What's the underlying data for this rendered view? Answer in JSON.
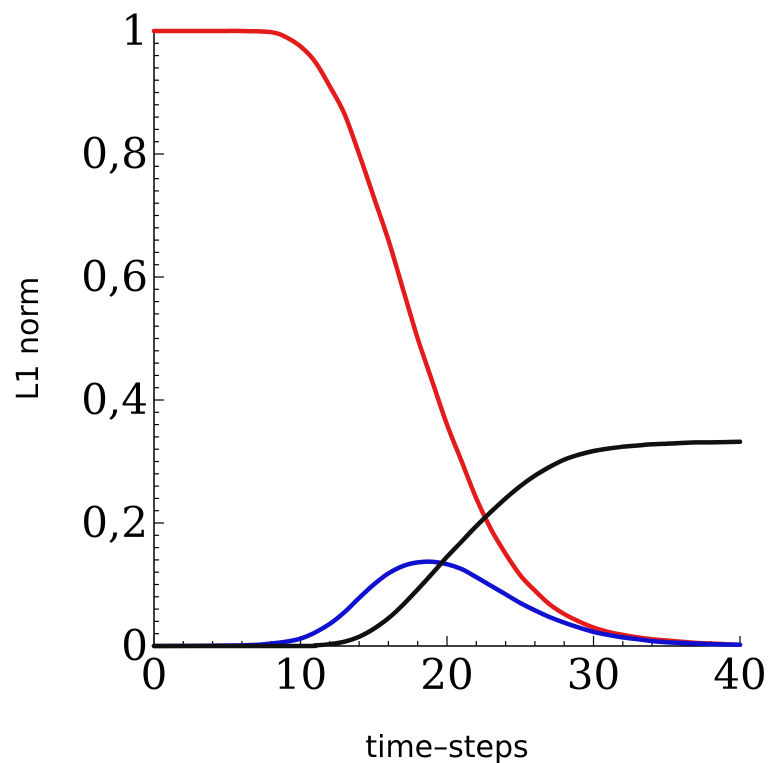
{
  "chart_data": {
    "type": "line",
    "title": "",
    "xlabel": "time–steps",
    "ylabel": "L1 norm",
    "xlim": [
      0,
      40
    ],
    "ylim": [
      0,
      1
    ],
    "x_ticks": [
      0,
      10,
      20,
      30,
      40
    ],
    "x_tick_labels": [
      "0",
      "10",
      "20",
      "30",
      "40"
    ],
    "y_ticks": [
      0,
      0.2,
      0.4,
      0.6,
      0.8,
      1
    ],
    "y_tick_labels": [
      "0",
      "0,2",
      "0,4",
      "0,6",
      "0,8",
      "1"
    ],
    "grid": false,
    "legend": "none",
    "series": [
      {
        "color": "#e31b1b",
        "x": [
          0,
          4,
          6,
          8,
          9,
          10,
          11,
          12,
          13,
          14,
          15,
          16,
          17,
          18,
          19,
          20,
          21,
          22,
          23,
          24,
          25,
          26,
          27,
          28,
          29,
          30,
          31,
          32,
          33,
          34,
          35,
          36,
          37,
          38,
          39,
          40
        ],
        "y": [
          1.0,
          1.0,
          1.0,
          0.998,
          0.99,
          0.975,
          0.95,
          0.91,
          0.865,
          0.8,
          0.73,
          0.66,
          0.58,
          0.5,
          0.43,
          0.36,
          0.3,
          0.24,
          0.19,
          0.15,
          0.115,
          0.09,
          0.068,
          0.052,
          0.04,
          0.03,
          0.023,
          0.018,
          0.014,
          0.011,
          0.009,
          0.007,
          0.005,
          0.004,
          0.003,
          0.002
        ]
      },
      {
        "color": "#1010d0",
        "x": [
          0,
          6,
          8,
          9,
          10,
          11,
          12,
          13,
          14,
          15,
          16,
          17,
          18,
          19,
          20,
          21,
          22,
          23,
          24,
          25,
          26,
          27,
          28,
          29,
          30,
          31,
          32,
          33,
          34,
          35,
          36,
          37,
          38,
          40
        ],
        "y": [
          0.0,
          0.001,
          0.004,
          0.007,
          0.012,
          0.022,
          0.036,
          0.055,
          0.078,
          0.1,
          0.118,
          0.13,
          0.136,
          0.137,
          0.133,
          0.125,
          0.112,
          0.098,
          0.084,
          0.07,
          0.058,
          0.047,
          0.038,
          0.03,
          0.023,
          0.018,
          0.014,
          0.011,
          0.008,
          0.006,
          0.005,
          0.004,
          0.003,
          0.002
        ]
      },
      {
        "color": "#111111",
        "x": [
          0,
          10,
          11,
          12,
          13,
          14,
          15,
          16,
          17,
          18,
          19,
          20,
          21,
          22,
          23,
          24,
          25,
          26,
          27,
          28,
          29,
          30,
          31,
          32,
          33,
          34,
          35,
          36,
          37,
          38,
          40
        ],
        "y": [
          0.0,
          0.0,
          0.001,
          0.003,
          0.007,
          0.015,
          0.028,
          0.045,
          0.067,
          0.092,
          0.118,
          0.145,
          0.17,
          0.195,
          0.218,
          0.24,
          0.26,
          0.277,
          0.291,
          0.303,
          0.311,
          0.317,
          0.321,
          0.324,
          0.326,
          0.328,
          0.329,
          0.33,
          0.331,
          0.331,
          0.332
        ]
      }
    ]
  }
}
